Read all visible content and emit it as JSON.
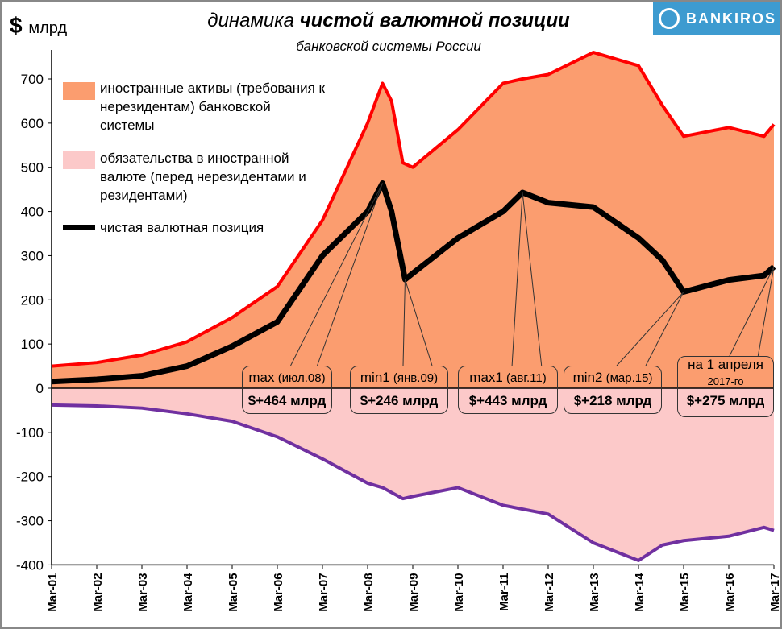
{
  "chart_data": {
    "type": "area",
    "title": "динамика чистой валютной позиции",
    "title_bold_part": "чистой валютной позиции",
    "title_prefix": "динамика",
    "subtitle": "банковской системы России",
    "ylabel_symbol": "$",
    "ylabel": "млрд",
    "ylim": [
      -400,
      750
    ],
    "yticks": [
      -400,
      -300,
      -200,
      -100,
      0,
      100,
      200,
      300,
      400,
      500,
      600,
      700
    ],
    "xlim": [
      2001.17,
      2017.17
    ],
    "xticks": [
      "Mar-01",
      "Mar-02",
      "Mar-03",
      "Mar-04",
      "Mar-05",
      "Mar-06",
      "Mar-07",
      "Mar-08",
      "Mar-09",
      "Mar-10",
      "Mar-11",
      "Mar-12",
      "Mar-13",
      "Mar-14",
      "Mar-15",
      "Mar-16",
      "Mar-17"
    ],
    "series": [
      {
        "name": "иностранные активы (требования к нерезидентам) банковской системы",
        "color": "#ff0000",
        "fill": "#fb9d6f",
        "x": [
          2001.17,
          2002.17,
          2003.17,
          2004.17,
          2005.17,
          2006.17,
          2007.17,
          2008.17,
          2008.5,
          2008.7,
          2008.95,
          2009.17,
          2010.17,
          2011.17,
          2011.6,
          2012.17,
          2013.17,
          2014.17,
          2014.7,
          2015.17,
          2016.17,
          2016.95,
          2017.17
        ],
        "values": [
          50,
          58,
          75,
          105,
          160,
          230,
          380,
          600,
          690,
          650,
          510,
          500,
          585,
          690,
          700,
          710,
          760,
          730,
          640,
          570,
          590,
          570,
          597
        ]
      },
      {
        "name": "обязательства в иностранной валюте (перед нерезидентами и резидентами)",
        "color": "#7030a0",
        "fill": "#fcc9c9",
        "x": [
          2001.17,
          2002.17,
          2003.17,
          2004.17,
          2005.17,
          2006.17,
          2007.17,
          2008.17,
          2008.5,
          2008.95,
          2009.17,
          2010.17,
          2011.17,
          2012.17,
          2013.17,
          2014.17,
          2014.7,
          2015.17,
          2016.17,
          2016.95,
          2017.17
        ],
        "values": [
          -38,
          -40,
          -45,
          -58,
          -75,
          -110,
          -160,
          -215,
          -225,
          -250,
          -245,
          -225,
          -265,
          -285,
          -350,
          -390,
          -355,
          -345,
          -335,
          -315,
          -322
        ]
      },
      {
        "name": "чистая валютная позиция",
        "color": "#000000",
        "x": [
          2001.17,
          2002.17,
          2003.17,
          2004.17,
          2005.17,
          2006.17,
          2007.17,
          2008.17,
          2008.5,
          2008.7,
          2009.0,
          2009.17,
          2010.17,
          2011.17,
          2011.6,
          2012.17,
          2013.17,
          2014.17,
          2014.7,
          2015.17,
          2016.17,
          2016.95,
          2017.17
        ],
        "values": [
          15,
          20,
          28,
          50,
          95,
          150,
          300,
          400,
          464,
          400,
          246,
          260,
          340,
          400,
          443,
          420,
          410,
          340,
          290,
          218,
          245,
          255,
          275
        ]
      }
    ],
    "annotations": [
      {
        "label": "max",
        "date": "(июл.08)",
        "value": "$+464 млрд",
        "x": 2008.5,
        "y": 464
      },
      {
        "label": "min1",
        "date": "(янв.09)",
        "value": "$+246 млрд",
        "x": 2009.0,
        "y": 246
      },
      {
        "label": "max1",
        "date": "(авг.11)",
        "value": "$+443 млрд",
        "x": 2011.6,
        "y": 443
      },
      {
        "label": "min2",
        "date": "(мар.15)",
        "value": "$+218 млрд",
        "x": 2015.17,
        "y": 218
      },
      {
        "label": "на 1 апреля",
        "date": "2017-го",
        "value": "$+275 млрд",
        "x": 2017.17,
        "y": 275
      }
    ],
    "legend_position": "top-left"
  },
  "logo": "BANKIROS"
}
